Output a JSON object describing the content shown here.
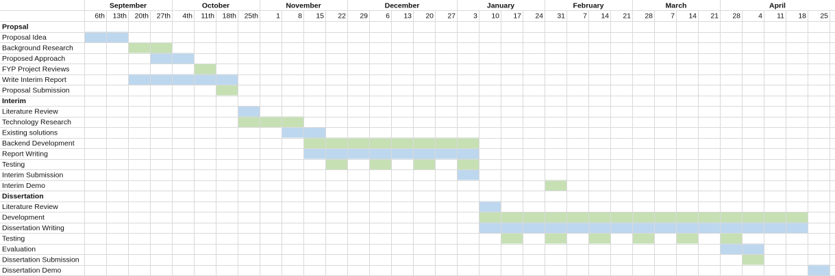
{
  "chart_data": {
    "type": "gantt",
    "months": [
      {
        "label": "September",
        "start_col": 1
      },
      {
        "label": "October",
        "start_col": 5
      },
      {
        "label": "November",
        "start_col": 9
      },
      {
        "label": "December",
        "start_col": 13
      },
      {
        "label": "January",
        "start_col": 18
      },
      {
        "label": "February",
        "start_col": 22
      },
      {
        "label": "March",
        "start_col": 26
      },
      {
        "label": "April",
        "start_col": 30
      }
    ],
    "weeks": [
      "6th",
      "13th",
      "20th",
      "27th",
      "4th",
      "11th",
      "18th",
      "25th",
      "1",
      "8",
      "15",
      "22",
      "29",
      "6",
      "13",
      "20",
      "27",
      "3",
      "10",
      "17",
      "24",
      "31",
      "7",
      "14",
      "21",
      "28",
      "7",
      "14",
      "21",
      "28",
      "4",
      "11",
      "18",
      "25"
    ],
    "colors": {
      "blue": "#bdd7ee",
      "green": "#c6e0b4",
      "grid": "#d9d9d9"
    },
    "rows": [
      {
        "label": "Propsal",
        "section": true,
        "bars": []
      },
      {
        "label": "Proposal Idea",
        "bars": [
          {
            "start": 1,
            "end": 2,
            "color": "blue"
          }
        ]
      },
      {
        "label": "Background Research",
        "bars": [
          {
            "start": 3,
            "end": 4,
            "color": "green"
          }
        ]
      },
      {
        "label": "Proposed Approach",
        "bars": [
          {
            "start": 4,
            "end": 5,
            "color": "blue"
          }
        ]
      },
      {
        "label": "FYP Project Reviews",
        "bars": [
          {
            "start": 6,
            "end": 6,
            "color": "green"
          }
        ]
      },
      {
        "label": "Write Interim Report",
        "bars": [
          {
            "start": 3,
            "end": 7,
            "color": "blue"
          }
        ]
      },
      {
        "label": "Proposal Submission",
        "bars": [
          {
            "start": 7,
            "end": 7,
            "color": "green"
          }
        ]
      },
      {
        "label": "Interim",
        "section": true,
        "bars": []
      },
      {
        "label": "Literature Review",
        "bars": [
          {
            "start": 8,
            "end": 8,
            "color": "blue"
          }
        ]
      },
      {
        "label": "Technology Research",
        "bars": [
          {
            "start": 8,
            "end": 10,
            "color": "green"
          }
        ]
      },
      {
        "label": "Existing solutions",
        "bars": [
          {
            "start": 10,
            "end": 11,
            "color": "blue"
          }
        ]
      },
      {
        "label": "Backend Development",
        "bars": [
          {
            "start": 11,
            "end": 18,
            "color": "green"
          }
        ]
      },
      {
        "label": "Report Writing",
        "bars": [
          {
            "start": 11,
            "end": 18,
            "color": "blue"
          }
        ]
      },
      {
        "label": "Testing",
        "bars": [
          {
            "start": 12,
            "end": 12,
            "color": "green"
          },
          {
            "start": 14,
            "end": 14,
            "color": "green"
          },
          {
            "start": 16,
            "end": 16,
            "color": "green"
          },
          {
            "start": 18,
            "end": 18,
            "color": "green"
          }
        ]
      },
      {
        "label": "Interim Submission",
        "bars": [
          {
            "start": 18,
            "end": 18,
            "color": "blue"
          }
        ]
      },
      {
        "label": "Interim Demo",
        "bars": [
          {
            "start": 22,
            "end": 22,
            "color": "green"
          }
        ]
      },
      {
        "label": "Dissertation",
        "section": true,
        "bars": []
      },
      {
        "label": "Literature Review",
        "bars": [
          {
            "start": 19,
            "end": 19,
            "color": "blue"
          }
        ]
      },
      {
        "label": "Development",
        "bars": [
          {
            "start": 19,
            "end": 33,
            "color": "green"
          }
        ]
      },
      {
        "label": "Dissertation Writing",
        "bars": [
          {
            "start": 19,
            "end": 33,
            "color": "blue"
          }
        ]
      },
      {
        "label": "Testing",
        "bars": [
          {
            "start": 20,
            "end": 20,
            "color": "green"
          },
          {
            "start": 22,
            "end": 22,
            "color": "green"
          },
          {
            "start": 24,
            "end": 24,
            "color": "green"
          },
          {
            "start": 26,
            "end": 26,
            "color": "green"
          },
          {
            "start": 28,
            "end": 28,
            "color": "green"
          },
          {
            "start": 30,
            "end": 30,
            "color": "green"
          }
        ]
      },
      {
        "label": "Evaluation",
        "bars": [
          {
            "start": 30,
            "end": 31,
            "color": "blue"
          }
        ]
      },
      {
        "label": "Dissertation Submission",
        "bars": [
          {
            "start": 31,
            "end": 31,
            "color": "green"
          }
        ]
      },
      {
        "label": "Dissertation Demo",
        "bars": [
          {
            "start": 34,
            "end": 34,
            "color": "blue"
          }
        ]
      }
    ]
  }
}
